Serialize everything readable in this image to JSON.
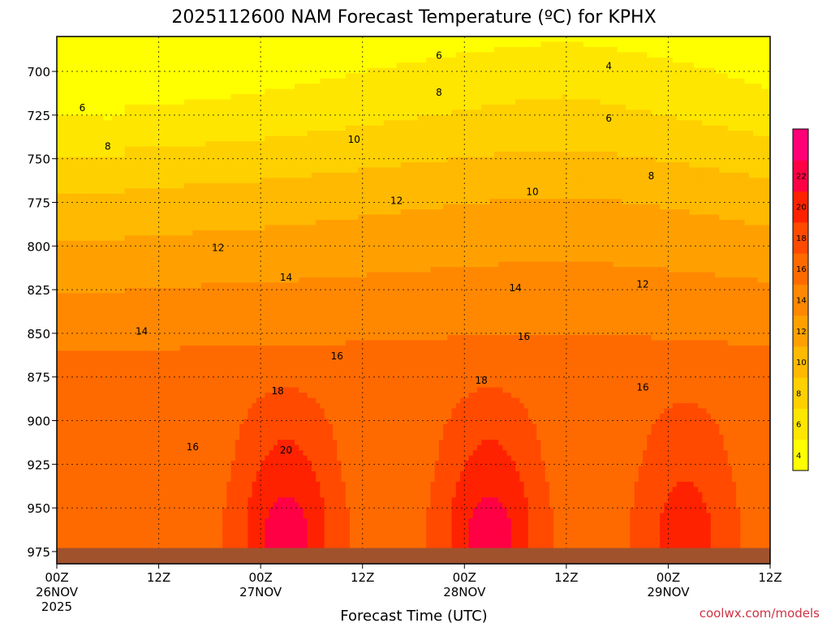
{
  "chart_data": {
    "type": "heatmap",
    "title": "2025112600 NAM Forecast Temperature (ºC) for KPHX",
    "xlabel": "Forecast Time (UTC)",
    "ylabel": "",
    "credit": "coolwx.com/models",
    "x_ticks": [
      {
        "hour": 0,
        "lines": [
          "00Z",
          "26NOV",
          "2025"
        ]
      },
      {
        "hour": 12,
        "lines": [
          "12Z"
        ]
      },
      {
        "hour": 24,
        "lines": [
          "00Z",
          "27NOV"
        ]
      },
      {
        "hour": 36,
        "lines": [
          "12Z"
        ]
      },
      {
        "hour": 48,
        "lines": [
          "00Z",
          "28NOV"
        ]
      },
      {
        "hour": 60,
        "lines": [
          "12Z"
        ]
      },
      {
        "hour": 72,
        "lines": [
          "00Z",
          "29NOV"
        ]
      },
      {
        "hour": 84,
        "lines": [
          "12Z"
        ]
      }
    ],
    "y_ticks": [
      700,
      725,
      750,
      775,
      800,
      825,
      850,
      875,
      900,
      925,
      950,
      975
    ],
    "y_range_hpa": [
      680,
      982
    ],
    "x_range_hours": [
      0,
      84
    ],
    "surface_pressure_hpa": 973,
    "colorbar": {
      "labels": [
        "4",
        "6",
        "8",
        "10",
        "12",
        "14",
        "16",
        "18",
        "20",
        "22"
      ],
      "levels": [
        3,
        5,
        7,
        9,
        11,
        13,
        15,
        17,
        19,
        21,
        23
      ],
      "colors": [
        "#ffff00",
        "#ffe600",
        "#ffd000",
        "#ffb900",
        "#ffa000",
        "#ff8800",
        "#ff6a00",
        "#ff4a00",
        "#ff2200",
        "#ff0044",
        "#ff0077"
      ]
    },
    "ground_color": "#a0522d",
    "contour_labels": [
      {
        "text": "6",
        "hour": 45,
        "p": 691
      },
      {
        "text": "4",
        "hour": 65,
        "p": 697
      },
      {
        "text": "8",
        "hour": 45,
        "p": 712
      },
      {
        "text": "6",
        "hour": 3,
        "p": 721
      },
      {
        "text": "6",
        "hour": 65,
        "p": 727
      },
      {
        "text": "10",
        "hour": 35,
        "p": 739
      },
      {
        "text": "8",
        "hour": 6,
        "p": 743
      },
      {
        "text": "8",
        "hour": 70,
        "p": 760
      },
      {
        "text": "10",
        "hour": 56,
        "p": 769
      },
      {
        "text": "12",
        "hour": 40,
        "p": 774
      },
      {
        "text": "12",
        "hour": 19,
        "p": 801
      },
      {
        "text": "14",
        "hour": 27,
        "p": 818
      },
      {
        "text": "12",
        "hour": 69,
        "p": 822
      },
      {
        "text": "14",
        "hour": 54,
        "p": 824
      },
      {
        "text": "14",
        "hour": 10,
        "p": 849
      },
      {
        "text": "16",
        "hour": 55,
        "p": 852
      },
      {
        "text": "16",
        "hour": 33,
        "p": 863
      },
      {
        "text": "18",
        "hour": 50,
        "p": 877
      },
      {
        "text": "18",
        "hour": 26,
        "p": 883
      },
      {
        "text": "16",
        "hour": 69,
        "p": 881
      },
      {
        "text": "16",
        "hour": 16,
        "p": 915
      },
      {
        "text": "20",
        "hour": 27,
        "p": 917
      }
    ]
  }
}
